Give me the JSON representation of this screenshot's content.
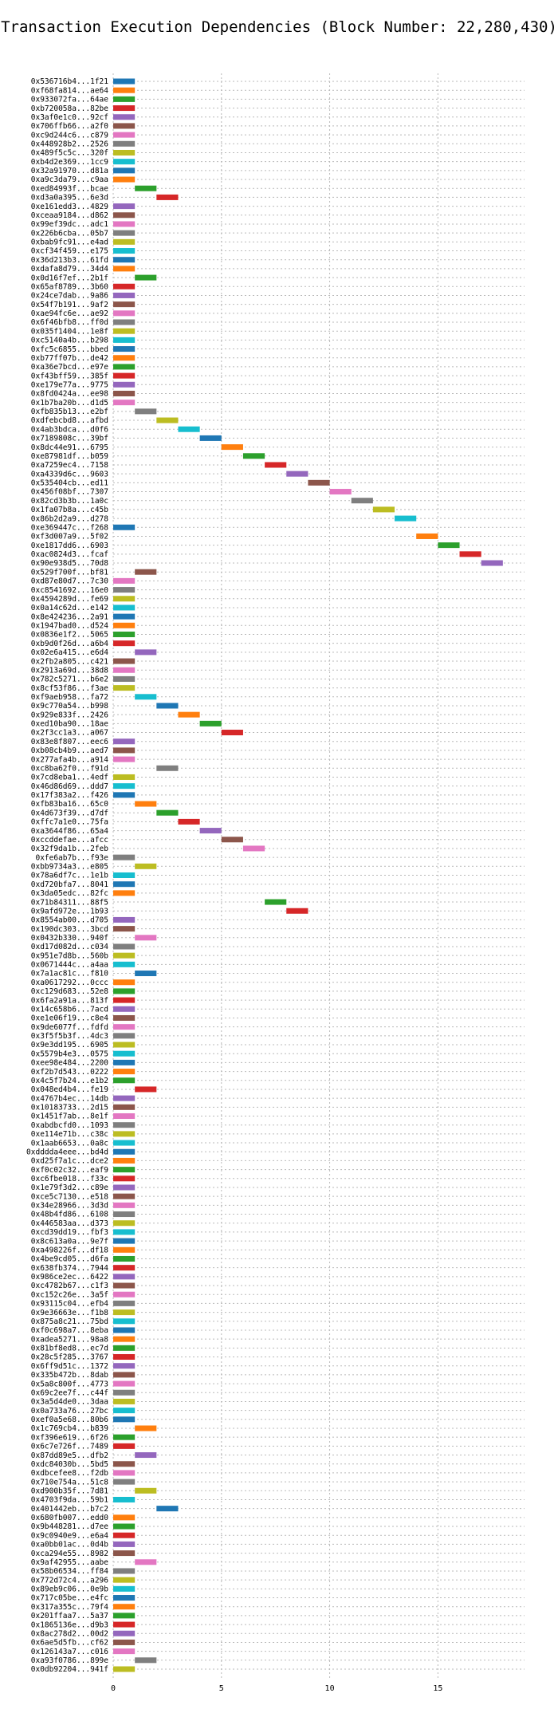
{
  "chart_data": {
    "type": "bar",
    "orientation": "horizontal",
    "title": "Transaction Execution Dependencies (Block Number: 22,280,430)",
    "xlabel": "",
    "ylabel": "",
    "xlim": [
      0,
      19
    ],
    "x_ticks": [
      0,
      5,
      10,
      15
    ],
    "grid": true,
    "bar_width": 1,
    "palette": [
      "#1f77b4",
      "#ff7f0e",
      "#2ca02c",
      "#d62728",
      "#9467bd",
      "#8c564b",
      "#e377c2",
      "#7f7f7f",
      "#bcbd22",
      "#17becf"
    ],
    "transactions": [
      {
        "label": "0x536716b4...1f21",
        "start": 0
      },
      {
        "label": "0xf68fa814...ae64",
        "start": 0
      },
      {
        "label": "0x933072fa...64ae",
        "start": 0
      },
      {
        "label": "0xb720058a...82be",
        "start": 0
      },
      {
        "label": "0x3af0e1c0...92cf",
        "start": 0
      },
      {
        "label": "0x706ffb66...a2f0",
        "start": 0
      },
      {
        "label": "0xc9d244c6...c879",
        "start": 0
      },
      {
        "label": "0x448928b2...2526",
        "start": 0
      },
      {
        "label": "0x489f5c5c...320f",
        "start": 0
      },
      {
        "label": "0xb4d2e369...1cc9",
        "start": 0
      },
      {
        "label": "0x32a91970...d81a",
        "start": 0
      },
      {
        "label": "0xa9c3da79...c9aa",
        "start": 0
      },
      {
        "label": "0xed84993f...bcae",
        "start": 1
      },
      {
        "label": "0xd3a0a395...6e3d",
        "start": 2
      },
      {
        "label": "0xe161edd3...4829",
        "start": 0
      },
      {
        "label": "0xceaa9184...d862",
        "start": 0
      },
      {
        "label": "0x99ef39dc...adc1",
        "start": 0
      },
      {
        "label": "0x226b6cba...05b7",
        "start": 0
      },
      {
        "label": "0xbab9fc91...e4ad",
        "start": 0
      },
      {
        "label": "0xcf34f459...e175",
        "start": 0
      },
      {
        "label": "0x36d213b3...61fd",
        "start": 0
      },
      {
        "label": "0xdafa8d79...34d4",
        "start": 0
      },
      {
        "label": "0x0d16f7ef...2b1f",
        "start": 1
      },
      {
        "label": "0x65af8789...3b60",
        "start": 0
      },
      {
        "label": "0x24ce7dab...9a86",
        "start": 0
      },
      {
        "label": "0x54f7b191...9af2",
        "start": 0
      },
      {
        "label": "0xae94fc6e...ae92",
        "start": 0
      },
      {
        "label": "0x6f46bfb8...ff0d",
        "start": 0
      },
      {
        "label": "0x035f1404...1e8f",
        "start": 0
      },
      {
        "label": "0xc5140a4b...b298",
        "start": 0
      },
      {
        "label": "0xfc5c6855...bbed",
        "start": 0
      },
      {
        "label": "0xb77ff07b...de42",
        "start": 0
      },
      {
        "label": "0xa36e7bcd...e97e",
        "start": 0
      },
      {
        "label": "0xf43bff59...385f",
        "start": 0
      },
      {
        "label": "0xe179e77a...9775",
        "start": 0
      },
      {
        "label": "0x8fd0424a...ee98",
        "start": 0
      },
      {
        "label": "0x1b7ba20b...d1d5",
        "start": 0
      },
      {
        "label": "0xfb835b13...e2bf",
        "start": 1
      },
      {
        "label": "0xdfebcbd8...afbd",
        "start": 2
      },
      {
        "label": "0x4ab3bdca...d0f6",
        "start": 3
      },
      {
        "label": "0x7189808c...39bf",
        "start": 4
      },
      {
        "label": "0x8dc44e91...6795",
        "start": 5
      },
      {
        "label": "0xe87981df...b059",
        "start": 6
      },
      {
        "label": "0xa7259ec4...7158",
        "start": 7
      },
      {
        "label": "0xa4339d6c...9603",
        "start": 8
      },
      {
        "label": "0x535404cb...ed11",
        "start": 9
      },
      {
        "label": "0x456f08bf...7307",
        "start": 10
      },
      {
        "label": "0x82cd3b3b...1a0c",
        "start": 11
      },
      {
        "label": "0x1fa07b8a...c45b",
        "start": 12
      },
      {
        "label": "0x86b2d2a9...d278",
        "start": 13
      },
      {
        "label": "0xe369447c...f268",
        "start": 0
      },
      {
        "label": "0xf3d007a9...5f02",
        "start": 14
      },
      {
        "label": "0xe1817dd6...6903",
        "start": 15
      },
      {
        "label": "0xac0824d3...fcaf",
        "start": 16
      },
      {
        "label": "0x90e938d5...70d8",
        "start": 17
      },
      {
        "label": "0x529f700f...bf81",
        "start": 1
      },
      {
        "label": "0xd87e80d7...7c30",
        "start": 0
      },
      {
        "label": "0xc8541692...16e0",
        "start": 0
      },
      {
        "label": "0x4594289d...fe69",
        "start": 0
      },
      {
        "label": "0x0a14c62d...e142",
        "start": 0
      },
      {
        "label": "0x8e424236...2a91",
        "start": 0
      },
      {
        "label": "0x1947bad0...d524",
        "start": 0
      },
      {
        "label": "0x0836e1f2...5065",
        "start": 0
      },
      {
        "label": "0xb9d0f26d...a6b4",
        "start": 0
      },
      {
        "label": "0x02e6a415...e6d4",
        "start": 1
      },
      {
        "label": "0x2fb2a805...c421",
        "start": 0
      },
      {
        "label": "0x2913a69d...38d8",
        "start": 0
      },
      {
        "label": "0x782c5271...b6e2",
        "start": 0
      },
      {
        "label": "0x8cf53f86...f3ae",
        "start": 0
      },
      {
        "label": "0xf9aeb958...fa72",
        "start": 1
      },
      {
        "label": "0x9c770a54...b998",
        "start": 2
      },
      {
        "label": "0x929e833f...2426",
        "start": 3
      },
      {
        "label": "0xed10ba90...18ae",
        "start": 4
      },
      {
        "label": "0x2f3cc1a3...a067",
        "start": 5
      },
      {
        "label": "0x83e8f807...eec6",
        "start": 0
      },
      {
        "label": "0xb08cb4b9...aed7",
        "start": 0
      },
      {
        "label": "0x277afa4b...a914",
        "start": 0
      },
      {
        "label": "0xc8ba62f0...f91d",
        "start": 2
      },
      {
        "label": "0x7cd8eba1...4edf",
        "start": 0
      },
      {
        "label": "0x46d86d69...ddd7",
        "start": 0
      },
      {
        "label": "0x17f383a2...f426",
        "start": 0
      },
      {
        "label": "0xfb83ba16...65c0",
        "start": 1
      },
      {
        "label": "0x4d673f39...d7df",
        "start": 2
      },
      {
        "label": "0xffc7a1e0...75fa",
        "start": 3
      },
      {
        "label": "0xa3644f86...65a4",
        "start": 4
      },
      {
        "label": "0xccddefae...afcc",
        "start": 5
      },
      {
        "label": "0x32f9da1b...2feb",
        "start": 6
      },
      {
        "label": "0xfe6ab7b...f93e",
        "start": 0
      },
      {
        "label": "0xbb9734a3...e805",
        "start": 1
      },
      {
        "label": "0x78a6df7c...1e1b",
        "start": 0
      },
      {
        "label": "0xd720bfa7...8041",
        "start": 0
      },
      {
        "label": "0x3da05edc...82fc",
        "start": 0
      },
      {
        "label": "0x71b84311...88f5",
        "start": 7
      },
      {
        "label": "0x9afd972e...1b93",
        "start": 8
      },
      {
        "label": "0x8554ab00...d705",
        "start": 0
      },
      {
        "label": "0x190dc303...3bcd",
        "start": 0
      },
      {
        "label": "0x0432b330...940f",
        "start": 1
      },
      {
        "label": "0xd17d082d...c034",
        "start": 0
      },
      {
        "label": "0x951e7d8b...560b",
        "start": 0
      },
      {
        "label": "0x0671444c...a4aa",
        "start": 0
      },
      {
        "label": "0x7a1ac81c...f810",
        "start": 1
      },
      {
        "label": "0xa0617292...0ccc",
        "start": 0
      },
      {
        "label": "0xc129d683...52e8",
        "start": 0
      },
      {
        "label": "0x6fa2a91a...813f",
        "start": 0
      },
      {
        "label": "0x14c658b6...7acd",
        "start": 0
      },
      {
        "label": "0xe1e06f19...c8e4",
        "start": 0
      },
      {
        "label": "0x9de6077f...fdfd",
        "start": 0
      },
      {
        "label": "0x3f5f5b3f...4dc3",
        "start": 0
      },
      {
        "label": "0x9e3dd195...6905",
        "start": 0
      },
      {
        "label": "0x5579b4e3...0575",
        "start": 0
      },
      {
        "label": "0xee98e484...2200",
        "start": 0
      },
      {
        "label": "0xf2b7d543...0222",
        "start": 0
      },
      {
        "label": "0x4c5f7b24...e1b2",
        "start": 0
      },
      {
        "label": "0x048ed4b4...fe19",
        "start": 1
      },
      {
        "label": "0x4767b4ec...14db",
        "start": 0
      },
      {
        "label": "0x10183733...2d15",
        "start": 0
      },
      {
        "label": "0x1451f7ab...8e1f",
        "start": 0
      },
      {
        "label": "0xabdbcfd0...1093",
        "start": 0
      },
      {
        "label": "0xe114e71b...c38c",
        "start": 0
      },
      {
        "label": "0x1aab6653...0a8c",
        "start": 0
      },
      {
        "label": "0xdddda4eee...bd4d",
        "start": 0
      },
      {
        "label": "0xd25f7a1c...dce2",
        "start": 0
      },
      {
        "label": "0xf0c02c32...eaf9",
        "start": 0
      },
      {
        "label": "0xc6fbe018...f33c",
        "start": 0
      },
      {
        "label": "0x1e79f3d2...c89e",
        "start": 0
      },
      {
        "label": "0xce5c7130...e518",
        "start": 0
      },
      {
        "label": "0x34e28966...3d3d",
        "start": 0
      },
      {
        "label": "0x48b4fd86...6108",
        "start": 0
      },
      {
        "label": "0x446583aa...d373",
        "start": 0
      },
      {
        "label": "0xcd39dd19...fbf3",
        "start": 0
      },
      {
        "label": "0x8c613a0a...9e7f",
        "start": 0
      },
      {
        "label": "0xa498226f...df18",
        "start": 0
      },
      {
        "label": "0x4be9cd05...d6fa",
        "start": 0
      },
      {
        "label": "0x638fb374...7944",
        "start": 0
      },
      {
        "label": "0x986ce2ec...6422",
        "start": 0
      },
      {
        "label": "0xc4782b67...c1f3",
        "start": 0
      },
      {
        "label": "0xc152c26e...3a5f",
        "start": 0
      },
      {
        "label": "0x93115c04...efb4",
        "start": 0
      },
      {
        "label": "0x9e36663e...f1b8",
        "start": 0
      },
      {
        "label": "0x875a8c21...75bd",
        "start": 0
      },
      {
        "label": "0xf0c698a7...8eba",
        "start": 0
      },
      {
        "label": "0xadea5271...98a8",
        "start": 0
      },
      {
        "label": "0x81bf8ed8...ec7d",
        "start": 0
      },
      {
        "label": "0x28c5f285...3767",
        "start": 0
      },
      {
        "label": "0x6ff9d51c...1372",
        "start": 0
      },
      {
        "label": "0x335b472b...8dab",
        "start": 0
      },
      {
        "label": "0x5a8c800f...4773",
        "start": 0
      },
      {
        "label": "0x69c2ee7f...c44f",
        "start": 0
      },
      {
        "label": "0x3a5d4de0...3daa",
        "start": 0
      },
      {
        "label": "0x0a733a76...27bc",
        "start": 0
      },
      {
        "label": "0xef0a5e68...80b6",
        "start": 0
      },
      {
        "label": "0x1c769cb4...b839",
        "start": 1
      },
      {
        "label": "0xf396e619...6f26",
        "start": 0
      },
      {
        "label": "0x6c7e726f...7489",
        "start": 0
      },
      {
        "label": "0x87dd89e5...dfb2",
        "start": 1
      },
      {
        "label": "0xdc84030b...5bd5",
        "start": 0
      },
      {
        "label": "0xdbcefee8...f2db",
        "start": 0
      },
      {
        "label": "0x710e754a...51c8",
        "start": 0
      },
      {
        "label": "0xd900b35f...7d81",
        "start": 1
      },
      {
        "label": "0x4703f9da...59b1",
        "start": 0
      },
      {
        "label": "0x401442eb...b7c2",
        "start": 2
      },
      {
        "label": "0x680fb007...edd0",
        "start": 0
      },
      {
        "label": "0x9b448281...d7ee",
        "start": 0
      },
      {
        "label": "0x9c0940e9...e6a4",
        "start": 0
      },
      {
        "label": "0xa0bb01ac...0d4b",
        "start": 0
      },
      {
        "label": "0xca294e55...8982",
        "start": 0
      },
      {
        "label": "0x9af42955...aabe",
        "start": 1
      },
      {
        "label": "0x58b06534...ff84",
        "start": 0
      },
      {
        "label": "0x772d72c4...a296",
        "start": 0
      },
      {
        "label": "0x89eb9c06...0e9b",
        "start": 0
      },
      {
        "label": "0x717c05be...e4fc",
        "start": 0
      },
      {
        "label": "0x317a355c...79f4",
        "start": 0
      },
      {
        "label": "0x201ffaa7...5a37",
        "start": 0
      },
      {
        "label": "0x1865136e...d9b3",
        "start": 0
      },
      {
        "label": "0x8ac278d2...00d2",
        "start": 0
      },
      {
        "label": "0x6ae5d5fb...cf62",
        "start": 0
      },
      {
        "label": "0x126143a7...c016",
        "start": 0
      },
      {
        "label": "0xa93f0786...899e",
        "start": 1
      },
      {
        "label": "0x0db92204...941f",
        "start": 0
      }
    ]
  }
}
